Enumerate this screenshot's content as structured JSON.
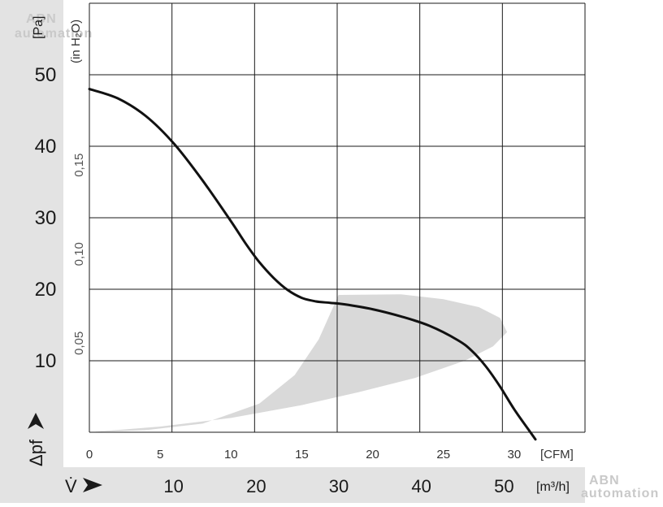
{
  "chart_data": {
    "type": "line",
    "x_unit": "[CFM]",
    "x_ticks": [
      "0",
      "5",
      "10",
      "15",
      "20",
      "25",
      "30"
    ],
    "x_range": [
      0,
      35
    ],
    "x_secondary_unit": "[m³/h]",
    "x_secondary_ticks": [
      "10",
      "20",
      "30",
      "40",
      "50"
    ],
    "x_secondary_label": "V̇",
    "y_unit": "[Pa]",
    "y_ticks": [
      "10",
      "20",
      "30",
      "40",
      "50"
    ],
    "y_range": [
      0,
      60
    ],
    "y_label": "Δpf",
    "y_secondary_unit": "(in H₂O)",
    "y_secondary_ticks": [
      "0,05",
      "0,10",
      "0,15"
    ],
    "series": [
      {
        "color": "#111111",
        "x": [
          0,
          2,
          4,
          6,
          8,
          10,
          11,
          12,
          13,
          14,
          15,
          16,
          17,
          18,
          20,
          22,
          24,
          26,
          27,
          28,
          29,
          30,
          31,
          31.5
        ],
        "y": [
          48,
          46.7,
          44.2,
          40.3,
          35.2,
          29.5,
          26.5,
          23.8,
          21.6,
          19.9,
          18.8,
          18.3,
          18.1,
          17.9,
          17.2,
          16.2,
          14.9,
          12.9,
          11.4,
          9.2,
          6.4,
          3.2,
          0.4,
          -1
        ]
      }
    ],
    "shaded_region": {
      "color": "#d9d9d9",
      "polygon": [
        [
          0,
          0
        ],
        [
          5,
          0.8
        ],
        [
          10,
          2
        ],
        [
          15,
          3.8
        ],
        [
          19,
          5.6
        ],
        [
          23,
          7.6
        ],
        [
          26.5,
          10
        ],
        [
          28.5,
          12
        ],
        [
          29.5,
          14
        ],
        [
          29,
          16
        ],
        [
          27.5,
          17.5
        ],
        [
          25,
          18.6
        ],
        [
          22,
          19.3
        ],
        [
          17.6,
          19.2
        ],
        [
          16.2,
          13
        ],
        [
          14.5,
          8
        ],
        [
          12,
          4
        ],
        [
          8,
          1.2
        ],
        [
          4,
          0.3
        ],
        [
          0,
          0
        ]
      ]
    },
    "grid": true
  },
  "watermarks": [
    "ABN",
    "automation",
    "ABN",
    "automation"
  ]
}
